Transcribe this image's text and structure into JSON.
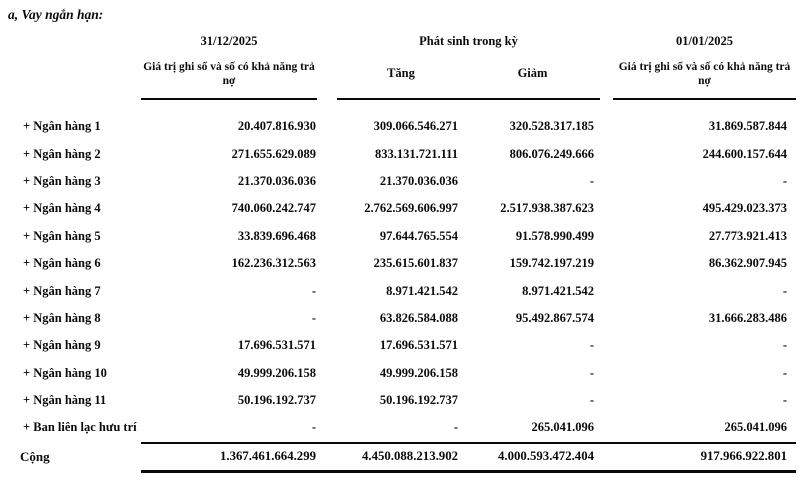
{
  "title": "a, Vay ngắn hạn:",
  "table": {
    "header": {
      "col_end_date": "31/12/2025",
      "period_group": "Phát sinh trong kỳ",
      "col_start_date": "01/01/2025",
      "carrying_value_label_end": "Giá trị ghi sổ và số có khả năng trả nợ",
      "carrying_value_label_start": "Giá trị ghi sổ và số có khả năng trả nợ",
      "increase_label": "Tăng",
      "decrease_label": "Giảm"
    },
    "rows": [
      {
        "label": "+ Ngân hàng 1",
        "values": [
          "20.407.816.930",
          "309.066.546.271",
          "320.528.317.185",
          "31.869.587.844"
        ]
      },
      {
        "label": "+ Ngân hàng 2",
        "values": [
          "271.655.629.089",
          "833.131.721.111",
          "806.076.249.666",
          "244.600.157.644"
        ]
      },
      {
        "label": "+ Ngân hàng 3",
        "values": [
          "21.370.036.036",
          "21.370.036.036",
          "-",
          "-"
        ]
      },
      {
        "label": "+ Ngân hàng 4",
        "values": [
          "740.060.242.747",
          "2.762.569.606.997",
          "2.517.938.387.623",
          "495.429.023.373"
        ]
      },
      {
        "label": "+ Ngân hàng 5",
        "values": [
          "33.839.696.468",
          "97.644.765.554",
          "91.578.990.499",
          "27.773.921.413"
        ]
      },
      {
        "label": "+ Ngân hàng 6",
        "values": [
          "162.236.312.563",
          "235.615.601.837",
          "159.742.197.219",
          "86.362.907.945"
        ]
      },
      {
        "label": "+ Ngân hàng 7",
        "values": [
          "-",
          "8.971.421.542",
          "8.971.421.542",
          "-"
        ]
      },
      {
        "label": "+ Ngân hàng 8",
        "values": [
          "-",
          "63.826.584.088",
          "95.492.867.574",
          "31.666.283.486"
        ]
      },
      {
        "label": "+ Ngân hàng 9",
        "values": [
          "17.696.531.571",
          "17.696.531.571",
          "-",
          "-"
        ]
      },
      {
        "label": "+ Ngân hàng 10",
        "values": [
          "49.999.206.158",
          "49.999.206.158",
          "-",
          "-"
        ]
      },
      {
        "label": "+ Ngân hàng 11",
        "values": [
          "50.196.192.737",
          "50.196.192.737",
          "-",
          "-"
        ]
      },
      {
        "label": "+ Ban liên lạc hưu trí",
        "values": [
          "-",
          "-",
          "265.041.096",
          "265.041.096"
        ]
      }
    ],
    "total": {
      "label": "Cộng",
      "values": [
        "1.367.461.664.299",
        "4.450.088.213.902",
        "4.000.593.472.404",
        "917.966.922.801"
      ]
    }
  }
}
